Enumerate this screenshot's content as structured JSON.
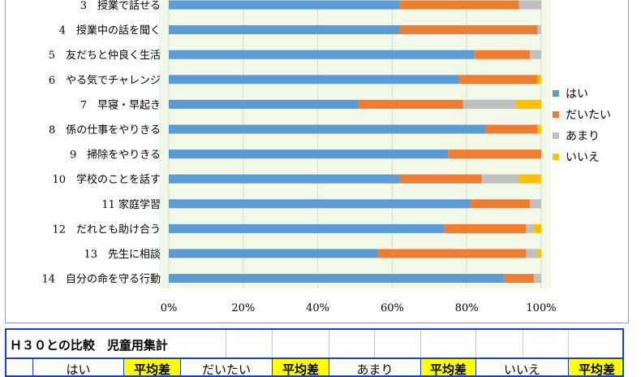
{
  "chart_data": {
    "type": "bar",
    "orientation": "horizontal",
    "stacked": "percent",
    "categories": [
      "3　授業で話せる",
      "4　授業中の話を聞く",
      "5　友だちと仲良く生活",
      "6　やる気でチャレンジ",
      "7　早寝・早起き",
      "8　係の仕事をやりきる",
      "9　掃除をやりきる",
      "10　学校のことを話す",
      "11 家庭学習",
      "12　だれとも助け合う",
      "13　先生に相談",
      "14　自分の命を守る行動"
    ],
    "series": [
      {
        "name": "はい",
        "color": "#5b9bd5",
        "values": [
          62,
          62,
          82,
          78,
          51,
          85,
          75,
          62,
          81,
          74,
          56,
          90
        ]
      },
      {
        "name": "だいたい",
        "color": "#ed7d31",
        "values": [
          32,
          37,
          15,
          21,
          28,
          14,
          25,
          22,
          16,
          22,
          40,
          8
        ]
      },
      {
        "name": "あまり",
        "color": "#bfbfbf",
        "values": [
          6,
          1,
          3,
          0,
          14,
          0,
          0,
          10,
          3,
          2,
          3,
          2
        ]
      },
      {
        "name": "いいえ",
        "color": "#ffc000",
        "values": [
          0,
          0,
          0,
          1,
          7,
          1,
          0,
          6,
          0,
          2,
          1,
          0
        ]
      }
    ],
    "x_ticks": [
      "0%",
      "20%",
      "40%",
      "60%",
      "80%",
      "100%"
    ],
    "xlim": [
      0,
      100
    ],
    "legend": "right",
    "plot_background": "#f2f9e9",
    "grid": true
  },
  "table": {
    "title": "Ｈ３０との比較　児童用集計",
    "headers": [
      "はい",
      "平均差",
      "だいたい",
      "平均差",
      "あまり",
      "平均差",
      "いいえ",
      "平均差"
    ]
  }
}
